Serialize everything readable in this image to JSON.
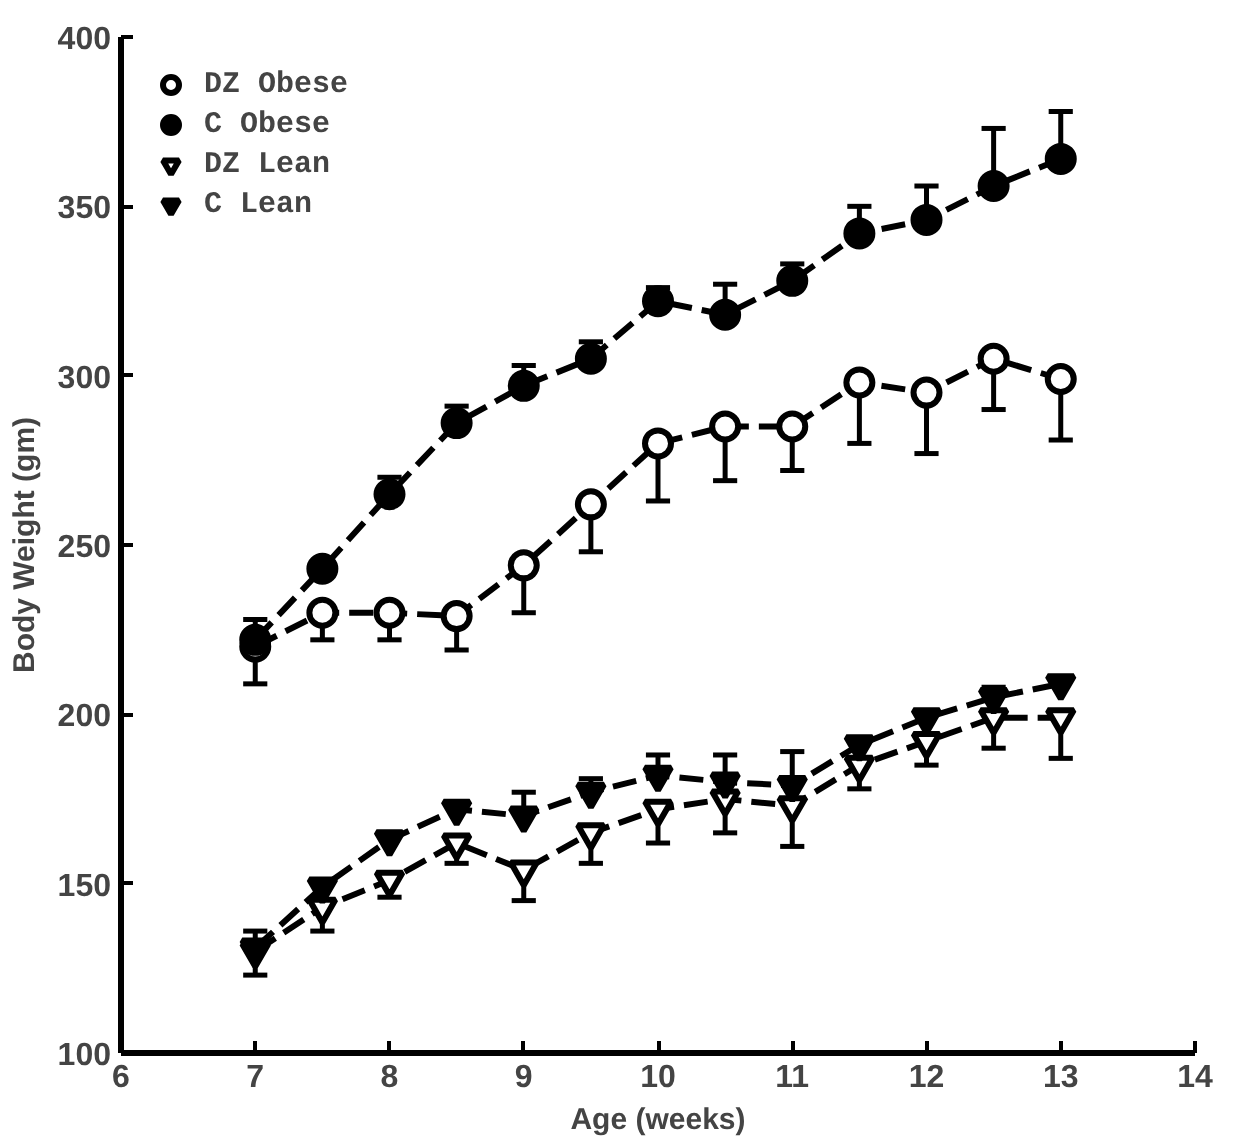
{
  "chart_data": {
    "type": "line",
    "xlabel": "Age (weeks)",
    "ylabel": "Body Weight (gm)",
    "x": [
      7,
      7.5,
      8,
      8.5,
      9,
      9.5,
      10,
      10.5,
      11,
      11.5,
      12,
      12.5,
      13
    ],
    "xlim": [
      6,
      14
    ],
    "xticks": [
      6,
      7,
      8,
      9,
      10,
      11,
      12,
      13,
      14
    ],
    "ylim": [
      100,
      400
    ],
    "yticks": [
      100,
      150,
      200,
      250,
      300,
      350,
      400
    ],
    "grid": false,
    "legend": "top left",
    "line_style": "dashed",
    "series": [
      {
        "name": "DZ Obese",
        "color": "#000000",
        "marker": "circle",
        "values": [
          220,
          230,
          230,
          229,
          244,
          262,
          280,
          285,
          285,
          298,
          295,
          305,
          299
        ],
        "errors": [
          [
            209,
            220
          ],
          [
            222,
            230
          ],
          [
            222,
            230
          ],
          [
            219,
            229
          ],
          [
            230,
            244
          ],
          [
            248,
            262
          ],
          [
            263,
            280
          ],
          [
            269,
            285
          ],
          [
            272,
            285
          ],
          [
            280,
            298
          ],
          [
            277,
            295
          ],
          [
            290,
            305
          ],
          [
            281,
            299
          ]
        ]
      },
      {
        "name": "C Obese",
        "color": "#000000",
        "marker": "circle",
        "values": [
          222,
          243,
          265,
          286,
          297,
          305,
          322,
          318,
          328,
          342,
          346,
          356,
          364
        ],
        "errors": [
          [
            222,
            228
          ],
          null,
          [
            265,
            270
          ],
          [
            286,
            291
          ],
          [
            297,
            303
          ],
          [
            305,
            310
          ],
          [
            322,
            326
          ],
          [
            318,
            327
          ],
          [
            328,
            333
          ],
          [
            342,
            350
          ],
          [
            346,
            356
          ],
          [
            356,
            373
          ],
          [
            364,
            378
          ]
        ]
      },
      {
        "name": "DZ Lean",
        "color": "#000000",
        "marker": "triangle",
        "values": [
          130,
          143,
          151,
          162,
          154,
          165,
          172,
          175,
          173,
          185,
          192,
          199,
          199
        ],
        "errors": [
          [
            123,
            130
          ],
          [
            136,
            143
          ],
          [
            146,
            151
          ],
          [
            156,
            162
          ],
          [
            145,
            154
          ],
          [
            156,
            165
          ],
          [
            162,
            172
          ],
          [
            165,
            175
          ],
          [
            161,
            173
          ],
          [
            178,
            185
          ],
          [
            185,
            192
          ],
          [
            190,
            199
          ],
          [
            187,
            199
          ]
        ]
      },
      {
        "name": "C Lean",
        "color": "#000000",
        "marker": "triangle",
        "values": [
          131,
          149,
          163,
          172,
          170,
          177,
          182,
          180,
          179,
          191,
          199,
          205,
          209
        ],
        "errors": [
          [
            131,
            136
          ],
          null,
          null,
          null,
          [
            170,
            177
          ],
          [
            177,
            181
          ],
          [
            182,
            188
          ],
          [
            180,
            188
          ],
          [
            179,
            189
          ],
          null,
          null,
          [
            205,
            208
          ],
          null
        ]
      }
    ]
  }
}
